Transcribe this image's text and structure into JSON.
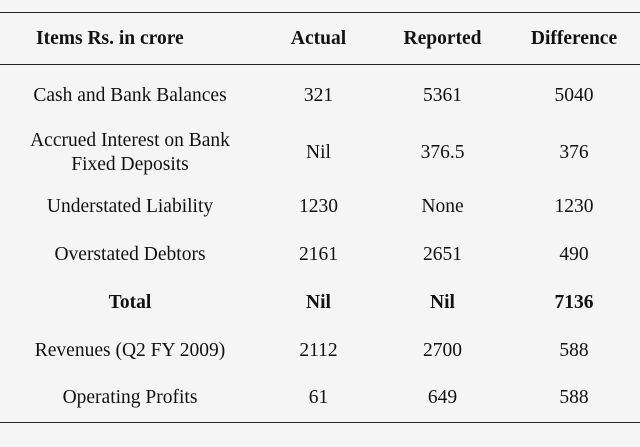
{
  "table": {
    "headers": [
      "Items Rs. in crore",
      "Actual",
      "Reported",
      "Difference"
    ],
    "rows": [
      [
        "Cash and Bank Balances",
        "321",
        "5361",
        "5040"
      ],
      [
        "Accrued Interest on Bank Fixed Deposits",
        "Nil",
        "376.5",
        "376"
      ],
      [
        "Understated Liability",
        "1230",
        "None",
        "1230"
      ],
      [
        "Overstated Debtors",
        "2161",
        "2651",
        "490"
      ],
      [
        "Total",
        "Nil",
        "Nil",
        "7136"
      ],
      [
        "Revenues (Q2 FY 2009)",
        "2112",
        "2700",
        "588"
      ],
      [
        "Operating Profits",
        "61",
        "649",
        "588"
      ]
    ]
  }
}
